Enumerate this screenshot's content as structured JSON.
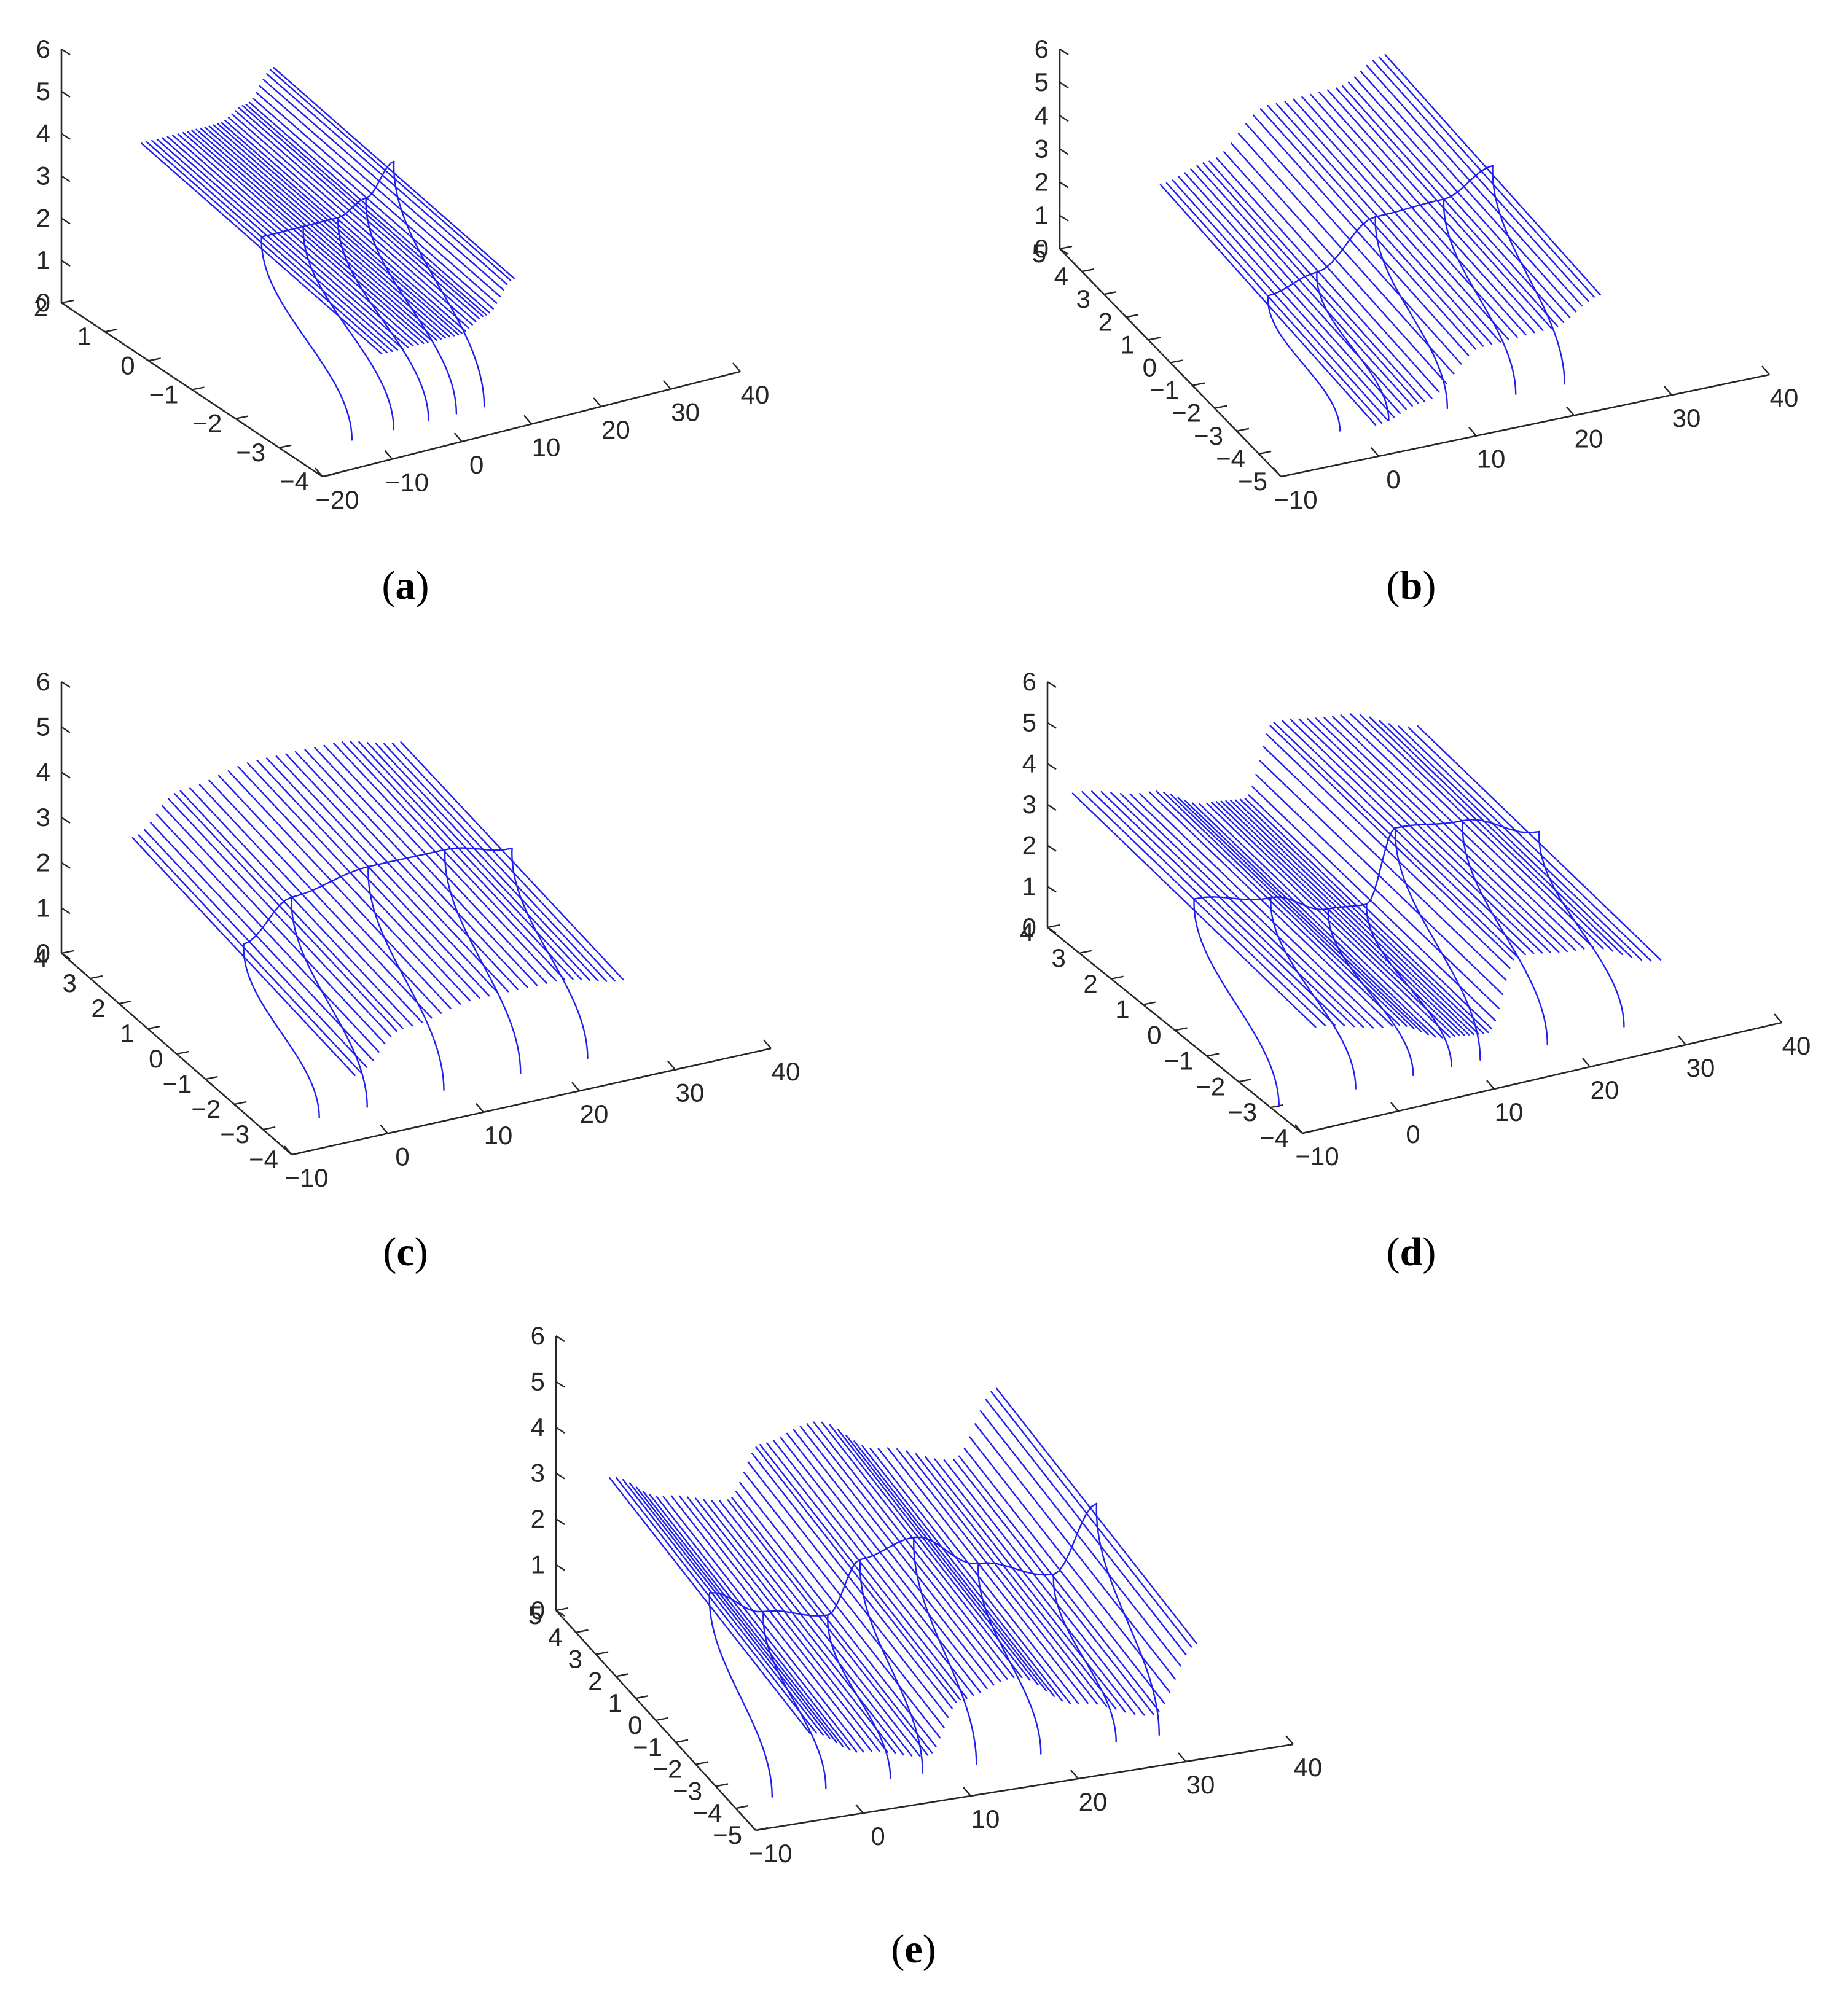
{
  "figure": {
    "line_color": "#1f1ff0",
    "axis_color": "#262626",
    "background": "#ffffff"
  },
  "chart_data": [
    {
      "type": "line",
      "view": "3d",
      "caption": "a",
      "xticks": [
        "−20",
        "−10",
        "0",
        "10",
        "20",
        "30",
        "40"
      ],
      "yticks": [
        "2",
        "1",
        "0",
        "−1",
        "−2",
        "−3",
        "−4"
      ],
      "zticks": [
        "0",
        "1",
        "2",
        "3",
        "4",
        "5",
        "6"
      ],
      "xlim": [
        -20,
        40
      ],
      "ylim": [
        -4,
        2
      ],
      "zlim": [
        0,
        6
      ],
      "grid": false,
      "series": [
        {
          "values": [
            {
              "x": -10,
              "z": 3.2
            },
            {
              "x": -4,
              "z": 3.2
            },
            {
              "x": 1,
              "z": 3.2
            },
            {
              "x": 5,
              "z": 3.5
            },
            {
              "x": 9,
              "z": 4.2
            }
          ]
        }
      ]
    },
    {
      "type": "line",
      "view": "3d",
      "caption": "b",
      "xticks": [
        "−10",
        "0",
        "10",
        "20",
        "30",
        "40"
      ],
      "yticks": [
        "5",
        "4",
        "3",
        "2",
        "1",
        "0",
        "−1",
        "−2",
        "−3",
        "−4",
        "−5"
      ],
      "zticks": [
        "0",
        "1",
        "2",
        "3",
        "4",
        "5",
        "6"
      ],
      "xlim": [
        -10,
        40
      ],
      "ylim": [
        -5,
        5
      ],
      "zlim": [
        0,
        6
      ],
      "grid": false,
      "series": [
        {
          "values": [
            {
              "x": 0,
              "z": 1.4
            },
            {
              "x": 5,
              "z": 1.8
            },
            {
              "x": 11,
              "z": 3.1
            },
            {
              "x": 18,
              "z": 3.2
            },
            {
              "x": 23,
              "z": 3.9
            }
          ]
        }
      ]
    },
    {
      "type": "line",
      "view": "3d",
      "caption": "c",
      "xticks": [
        "−10",
        "0",
        "10",
        "20",
        "30",
        "40"
      ],
      "yticks": [
        "4",
        "3",
        "2",
        "1",
        "0",
        "−1",
        "−2",
        "−3",
        "−4"
      ],
      "zticks": [
        "0",
        "1",
        "2",
        "3",
        "4",
        "5",
        "6"
      ],
      "xlim": [
        -10,
        40
      ],
      "ylim": [
        -4,
        4
      ],
      "zlim": [
        0,
        6
      ],
      "grid": false,
      "series": [
        {
          "values": [
            {
              "x": -3,
              "z": 2.1
            },
            {
              "x": 2,
              "z": 2.9
            },
            {
              "x": 10,
              "z": 3.2
            },
            {
              "x": 18,
              "z": 3.2
            },
            {
              "x": 25,
              "z": 2.9
            }
          ]
        }
      ]
    },
    {
      "type": "line",
      "view": "3d",
      "caption": "d",
      "xticks": [
        "−10",
        "0",
        "10",
        "20",
        "30",
        "40"
      ],
      "yticks": [
        "4",
        "3",
        "2",
        "1",
        "0",
        "−1",
        "−2",
        "−3",
        "−4"
      ],
      "zticks": [
        "0",
        "1",
        "2",
        "3",
        "4",
        "5",
        "6"
      ],
      "xlim": [
        -10,
        40
      ],
      "ylim": [
        -4,
        4
      ],
      "zlim": [
        0,
        6
      ],
      "grid": false,
      "series": [
        {
          "values": [
            {
              "x": -8,
              "z": 3.1
            },
            {
              "x": 0,
              "z": 2.7
            },
            {
              "x": 6,
              "z": 2.1
            },
            {
              "x": 10,
              "z": 2.0
            },
            {
              "x": 13,
              "z": 3.7
            },
            {
              "x": 20,
              "z": 3.5
            },
            {
              "x": 28,
              "z": 2.8
            }
          ]
        }
      ]
    },
    {
      "type": "line",
      "view": "3d",
      "caption": "e",
      "xticks": [
        "−10",
        "0",
        "10",
        "20",
        "30",
        "40"
      ],
      "yticks": [
        "5",
        "4",
        "3",
        "2",
        "1",
        "0",
        "−1",
        "−2",
        "−3",
        "−4",
        "−5"
      ],
      "zticks": [
        "0",
        "1",
        "2",
        "3",
        "4",
        "5",
        "6"
      ],
      "xlim": [
        -10,
        40
      ],
      "ylim": [
        -5,
        5
      ],
      "zlim": [
        0,
        6
      ],
      "grid": false,
      "series": [
        {
          "values": [
            {
              "x": -5,
              "z": 2.6
            },
            {
              "x": 0,
              "z": 2.0
            },
            {
              "x": 6,
              "z": 1.7
            },
            {
              "x": 9,
              "z": 2.8
            },
            {
              "x": 14,
              "z": 3.1
            },
            {
              "x": 20,
              "z": 2.3
            },
            {
              "x": 27,
              "z": 1.8
            },
            {
              "x": 31,
              "z": 3.2
            }
          ]
        }
      ]
    }
  ]
}
